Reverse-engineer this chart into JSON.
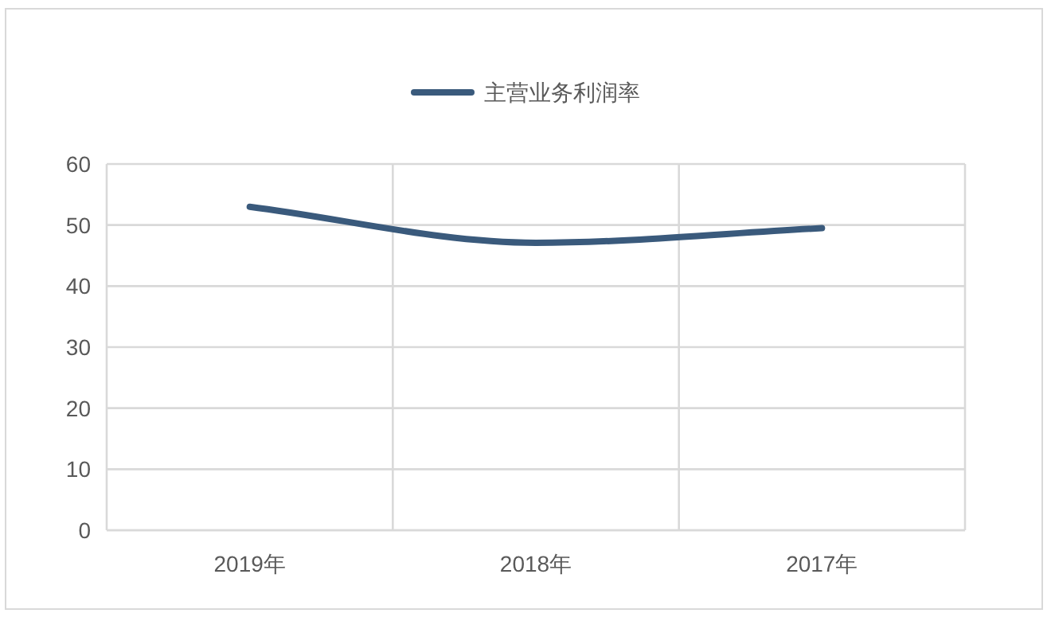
{
  "chart_data": {
    "type": "line",
    "categories": [
      "2019年",
      "2018年",
      "2017年"
    ],
    "series": [
      {
        "name": "主营业务利润率",
        "color": "#3a5a7c",
        "values": [
          53,
          47.1,
          49.5
        ]
      }
    ],
    "ylim": [
      0,
      60
    ],
    "yticks": [
      0,
      10,
      20,
      30,
      40,
      50,
      60
    ],
    "grid": true,
    "legend": "top",
    "marker": "none",
    "line_style": "solid"
  }
}
